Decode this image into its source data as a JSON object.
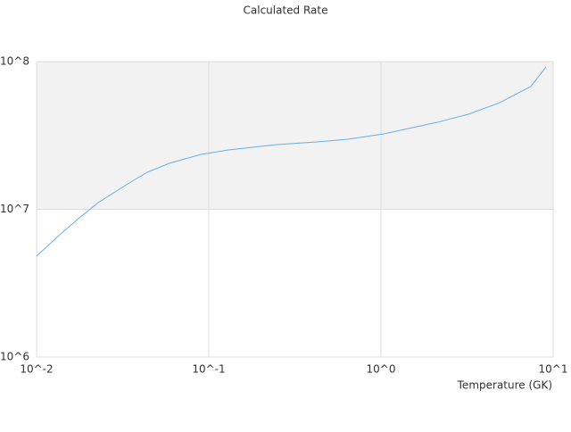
{
  "chart_data": {
    "type": "line",
    "title": "Calculated Rate",
    "x_label": "Temperature (GK)",
    "x": [
      0.01,
      0.0133,
      0.0175,
      0.0228,
      0.0346,
      0.0439,
      0.0591,
      0.0897,
      0.1285,
      0.248,
      0.424,
      0.643,
      1.04,
      2.12,
      3.22,
      4.89,
      7.41,
      9.1
    ],
    "series": [
      {
        "color": "#6aaee8",
        "values": [
          4820000,
          6550000,
          8650000,
          11100000,
          15100000,
          17800000,
          20500000,
          23500000,
          25200000,
          27400000,
          28600000,
          29800000,
          32400000,
          38800000,
          44000000,
          52700000,
          67800000,
          92000000
        ]
      }
    ],
    "xlim": [
      0.01,
      10
    ],
    "ylim": [
      1000000,
      100000000
    ],
    "xlog": true,
    "ylog": true,
    "xticks": [
      {
        "value": 0.01,
        "label": "10^-2"
      },
      {
        "value": 0.1,
        "label": "10^-1"
      },
      {
        "value": 1,
        "label": "10^0"
      },
      {
        "value": 10,
        "label": "10^1"
      }
    ],
    "yticks": [
      {
        "value": 1000000,
        "label": "10^6"
      },
      {
        "value": 10000000,
        "label": "10^7"
      },
      {
        "value": 100000000,
        "label": "10^8"
      }
    ],
    "grid": true,
    "alternating_bands": true
  }
}
